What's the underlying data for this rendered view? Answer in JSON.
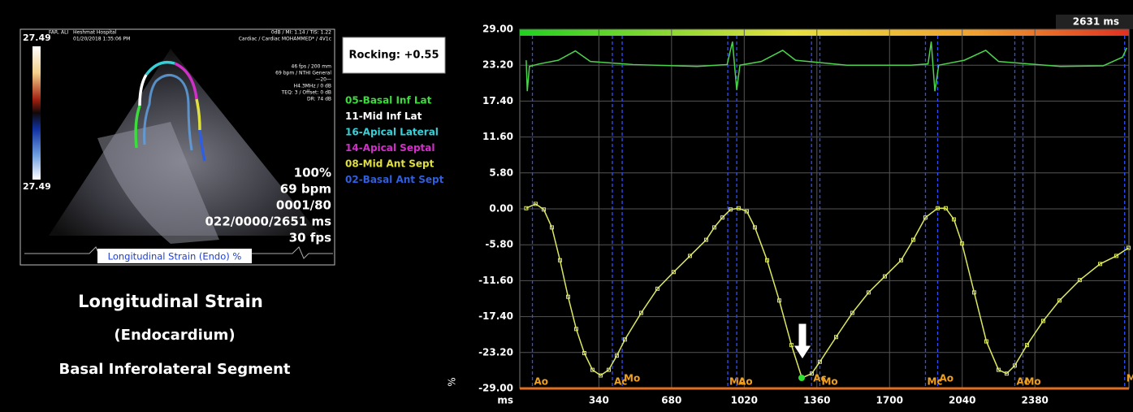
{
  "echo_panel": {
    "scale_top": "27.49",
    "scale_bottom": "27.49",
    "patient": "FAR, ALI",
    "hospital": "Heshmat Hospital",
    "datetime": "01/20/2018 1:35:06 PM",
    "header_right_1": "0dB / MI: 1.14 / TIS: 1.22",
    "header_right_2": "Cardiac / Cardiac MOHAMMED* / 4V1c",
    "settings": [
      "46 fps / 200 mm",
      "69 bpm / NTHI General",
      "—20—",
      "H4.3MHz / 0 dB",
      "TEQ: 3 / Offset: 0 dB",
      "DR: 74 dB"
    ],
    "stats": [
      "100%",
      "69 bpm",
      "0001/80",
      "022/0000/2651 ms",
      "30 fps"
    ],
    "caption": "Longitudinal Strain (Endo) %"
  },
  "rocking": "Rocking: +0.55",
  "segments": [
    {
      "label": "05-Basal Inf Lat",
      "color": "#3ddc3d"
    },
    {
      "label": "11-Mid Inf Lat",
      "color": "#ffffff"
    },
    {
      "label": "16-Apical Lateral",
      "color": "#38d0d8"
    },
    {
      "label": "14-Apical Septal",
      "color": "#d030c8"
    },
    {
      "label": "08-Mid Ant Sept",
      "color": "#e0e040"
    },
    {
      "label": "02-Basal Ant Sept",
      "color": "#2f5fe0"
    }
  ],
  "caption": [
    "Longitudinal Strain",
    "(Endocardium)",
    "Basal Inferolateral Segment"
  ],
  "chart_data": {
    "type": "line",
    "duration_label": "2631 ms",
    "y_label": "%",
    "x_label": "ms",
    "xlim": [
      -30,
      2820
    ],
    "ylim": [
      -29,
      29
    ],
    "grid": true,
    "xticks": [
      340,
      680,
      1020,
      1360,
      1700,
      2040,
      2380
    ],
    "yticks": [
      {
        "value": 29,
        "label": "29.00"
      },
      {
        "value": 23.2,
        "label": "23.20"
      },
      {
        "value": 17.4,
        "label": "17.40"
      },
      {
        "value": 11.6,
        "label": "11.60"
      },
      {
        "value": 5.8,
        "label": "5.80"
      },
      {
        "value": 0,
        "label": "0.00"
      },
      {
        "value": -5.8,
        "label": "-5.80"
      },
      {
        "value": -11.6,
        "label": "-11.60"
      },
      {
        "value": -17.4,
        "label": "-17.40"
      },
      {
        "value": -23.2,
        "label": "-23.20"
      },
      {
        "value": -29,
        "label": "-29.00"
      }
    ],
    "events": [
      {
        "label": "Ao",
        "x": 29
      },
      {
        "label": "Ac",
        "x": 403
      },
      {
        "label": "Mo",
        "x": 449
      },
      {
        "label": "Mc",
        "x": 943
      },
      {
        "label": "Ao",
        "x": 985
      },
      {
        "label": "Ac",
        "x": 1335
      },
      {
        "label": "Mo",
        "x": 1374
      },
      {
        "label": "Mc",
        "x": 1868
      },
      {
        "label": "Ao",
        "x": 1925
      },
      {
        "label": "Ac",
        "x": 2286
      },
      {
        "label": "Mo",
        "x": 2324
      },
      {
        "label": "Mc",
        "x": 2800
      }
    ],
    "series": [
      {
        "color": "#dde860",
        "x": [
          0,
          44,
          82,
          120,
          158,
          196,
          234,
          272,
          310,
          348,
          386,
          424,
          462,
          538,
          614,
          690,
          766,
          842,
          880,
          918,
          956,
          994,
          1032,
          1070,
          1127,
          1184,
          1241,
          1290,
          1336,
          1374,
          1450,
          1526,
          1602,
          1678,
          1754,
          1811,
          1868,
          1925,
          1963,
          2001,
          2039,
          2096,
          2153,
          2210,
          2248,
          2286,
          2343,
          2419,
          2495,
          2590,
          2685,
          2761,
          2818
        ],
        "values": [
          0.1,
          0.8,
          -0.1,
          -3,
          -8.3,
          -14.2,
          -19.4,
          -23.3,
          -26,
          -26.9,
          -26,
          -23.7,
          -21.1,
          -16.8,
          -12.9,
          -10.2,
          -7.6,
          -5,
          -3,
          -1.4,
          -0.1,
          0.1,
          -0.4,
          -3,
          -8.3,
          -14.8,
          -22,
          -27.3,
          -26.6,
          -24.7,
          -20.7,
          -16.8,
          -13.5,
          -10.9,
          -8.3,
          -5,
          -1.4,
          0.1,
          0.1,
          -1.7,
          -5.6,
          -13.5,
          -21.4,
          -26,
          -26.6,
          -25.3,
          -22,
          -18.1,
          -14.8,
          -11.5,
          -8.9,
          -7.6,
          -6.3
        ]
      },
      {
        "color": "#4cd34c",
        "x": [
          0,
          5,
          15,
          60,
          150,
          230,
          300,
          500,
          800,
          940,
          965,
          985,
          1000,
          1100,
          1200,
          1260,
          1500,
          1800,
          1880,
          1895,
          1912,
          1930,
          2050,
          2150,
          2210,
          2500,
          2700,
          2790,
          2810
        ],
        "values": [
          24,
          19,
          23,
          23.4,
          24,
          25.5,
          23.8,
          23.3,
          23,
          23.3,
          27,
          19.2,
          23.2,
          23.8,
          25.6,
          24,
          23.2,
          23.2,
          23.4,
          27,
          19,
          23.2,
          24,
          25.6,
          23.8,
          23,
          23.1,
          24.5,
          26
        ]
      }
    ]
  }
}
